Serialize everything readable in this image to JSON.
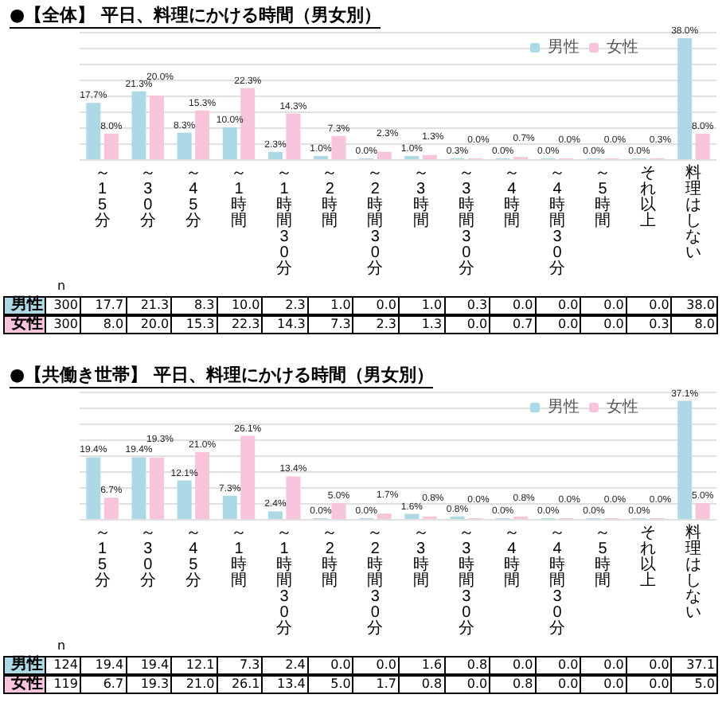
{
  "chart_data": [
    {
      "type": "bar",
      "title": "●【全体】 平日、料理にかける時間（男女別）",
      "categories": [
        "～15分",
        "～30分",
        "～45分",
        "～1時間",
        "～1時間30分",
        "～2時間",
        "～2時間30分",
        "～3時間",
        "～3時間30分",
        "～4時間",
        "～4時間30分",
        "～5時間",
        "それ以上",
        "料理はしない"
      ],
      "series": [
        {
          "name": "男性",
          "color": "#add8e6",
          "values": [
            17.7,
            21.3,
            8.3,
            10.0,
            2.3,
            1.0,
            0.0,
            1.0,
            0.3,
            0.0,
            0.0,
            0.0,
            0.0,
            38.0
          ],
          "value_labels": [
            "17.7%",
            "21.3%",
            "8.3%",
            "10.0%",
            "2.3%",
            "1.0%",
            "0.0%",
            "1.0%",
            "0.3%",
            "0.0%",
            "0.0%",
            "0.0%",
            "0.0%",
            "38.0%"
          ]
        },
        {
          "name": "女性",
          "color": "#f7c4dc",
          "values": [
            8.0,
            20.0,
            15.3,
            22.3,
            14.3,
            7.3,
            2.3,
            1.3,
            0.0,
            0.7,
            0.0,
            0.0,
            0.3,
            8.0
          ],
          "value_labels": [
            "8.0%",
            "20.0%",
            "15.3%",
            "22.3%",
            "14.3%",
            "7.3%",
            "2.3%",
            "1.3%",
            "0.0%",
            "0.7%",
            "0.0%",
            "0.0%",
            "0.3%",
            "8.0%"
          ]
        }
      ],
      "annotations": [
        "n",
        "300",
        "17.7",
        "21.3",
        "8.3",
        "10.0",
        "2.3",
        "1.0",
        "0.0",
        "1.0",
        "0.3",
        "0.0",
        "0.0",
        "0.0",
        "0.0",
        "38.0",
        "300",
        "8.0",
        "20.0",
        "15.3",
        "22.3",
        "14.3",
        "7.3",
        "2.3",
        "1.3",
        "0.0",
        "0.7",
        "0.0",
        "0.0",
        "0.3",
        "8.0"
      ],
      "ylim": [
        0,
        40
      ],
      "yticks": [
        {
          "value": 0,
          "label": null
        },
        {
          "value": 5,
          "label": null
        },
        {
          "value": 10,
          "label": null
        },
        {
          "value": 15,
          "label": null
        },
        {
          "value": 20,
          "label": null
        },
        {
          "value": 25,
          "label": null
        },
        {
          "value": 30,
          "label": null
        },
        {
          "value": 35,
          "label": null
        },
        {
          "value": 40,
          "label": null
        }
      ],
      "grid": "y",
      "legend": "top right",
      "tick_labels": "x"
    },
    {
      "type": "bar",
      "title": "●【共働き世帯】 平日、料理にかける時間（男女別）",
      "categories": [
        "～15分",
        "～30分",
        "～45分",
        "～1時間",
        "～1時間30分",
        "～2時間",
        "～2時間30分",
        "～3時間",
        "～3時間30分",
        "～4時間",
        "～4時間30分",
        "～5時間",
        "それ以上",
        "料理はしない"
      ],
      "series": [
        {
          "name": "男性",
          "color": "#add8e6",
          "values": [
            19.4,
            19.4,
            12.1,
            7.3,
            2.4,
            0.0,
            0.0,
            1.6,
            0.8,
            0.0,
            0.0,
            0.0,
            0.0,
            37.1
          ],
          "value_labels": [
            "19.4%",
            "19.4%",
            "12.1%",
            "7.3%",
            "2.4%",
            "0.0%",
            "0.0%",
            "1.6%",
            "0.8%",
            "0.0%",
            "0.0%",
            "0.0%",
            "0.0%",
            "37.1%"
          ]
        },
        {
          "name": "女性",
          "color": "#f7c4dc",
          "values": [
            6.7,
            19.3,
            21.0,
            26.1,
            13.4,
            5.0,
            1.7,
            0.8,
            0.0,
            0.8,
            0.0,
            0.0,
            0.0,
            5.0
          ],
          "value_labels": [
            "6.7%",
            "19.3%",
            "21.0%",
            "26.1%",
            "13.4%",
            "5.0%",
            "1.7%",
            "0.8%",
            "0.0%",
            "0.8%",
            "0.0%",
            "0.0%",
            "0.0%",
            "5.0%"
          ]
        }
      ],
      "annotations": [
        "n",
        "124",
        "19.4",
        "19.4",
        "12.1",
        "7.3",
        "2.4",
        "0.0",
        "0.0",
        "1.6",
        "0.8",
        "0.0",
        "0.0",
        "0.0",
        "0.0",
        "37.1",
        "119",
        "6.7",
        "19.3",
        "21.0",
        "26.1",
        "13.4",
        "5.0",
        "1.7",
        "0.8",
        "0.0",
        "0.8",
        "0.0",
        "0.0",
        "0.0",
        "5.0"
      ],
      "ylim": [
        0,
        40
      ],
      "yticks": [
        {
          "value": 0,
          "label": null
        },
        {
          "value": 5,
          "label": null
        },
        {
          "value": 10,
          "label": null
        },
        {
          "value": 15,
          "label": null
        },
        {
          "value": 20,
          "label": null
        },
        {
          "value": 25,
          "label": null
        },
        {
          "value": 30,
          "label": null
        },
        {
          "value": 35,
          "label": null
        },
        {
          "value": 40,
          "label": null
        }
      ],
      "grid": "y",
      "legend": "top right",
      "tick_labels": "x"
    }
  ]
}
